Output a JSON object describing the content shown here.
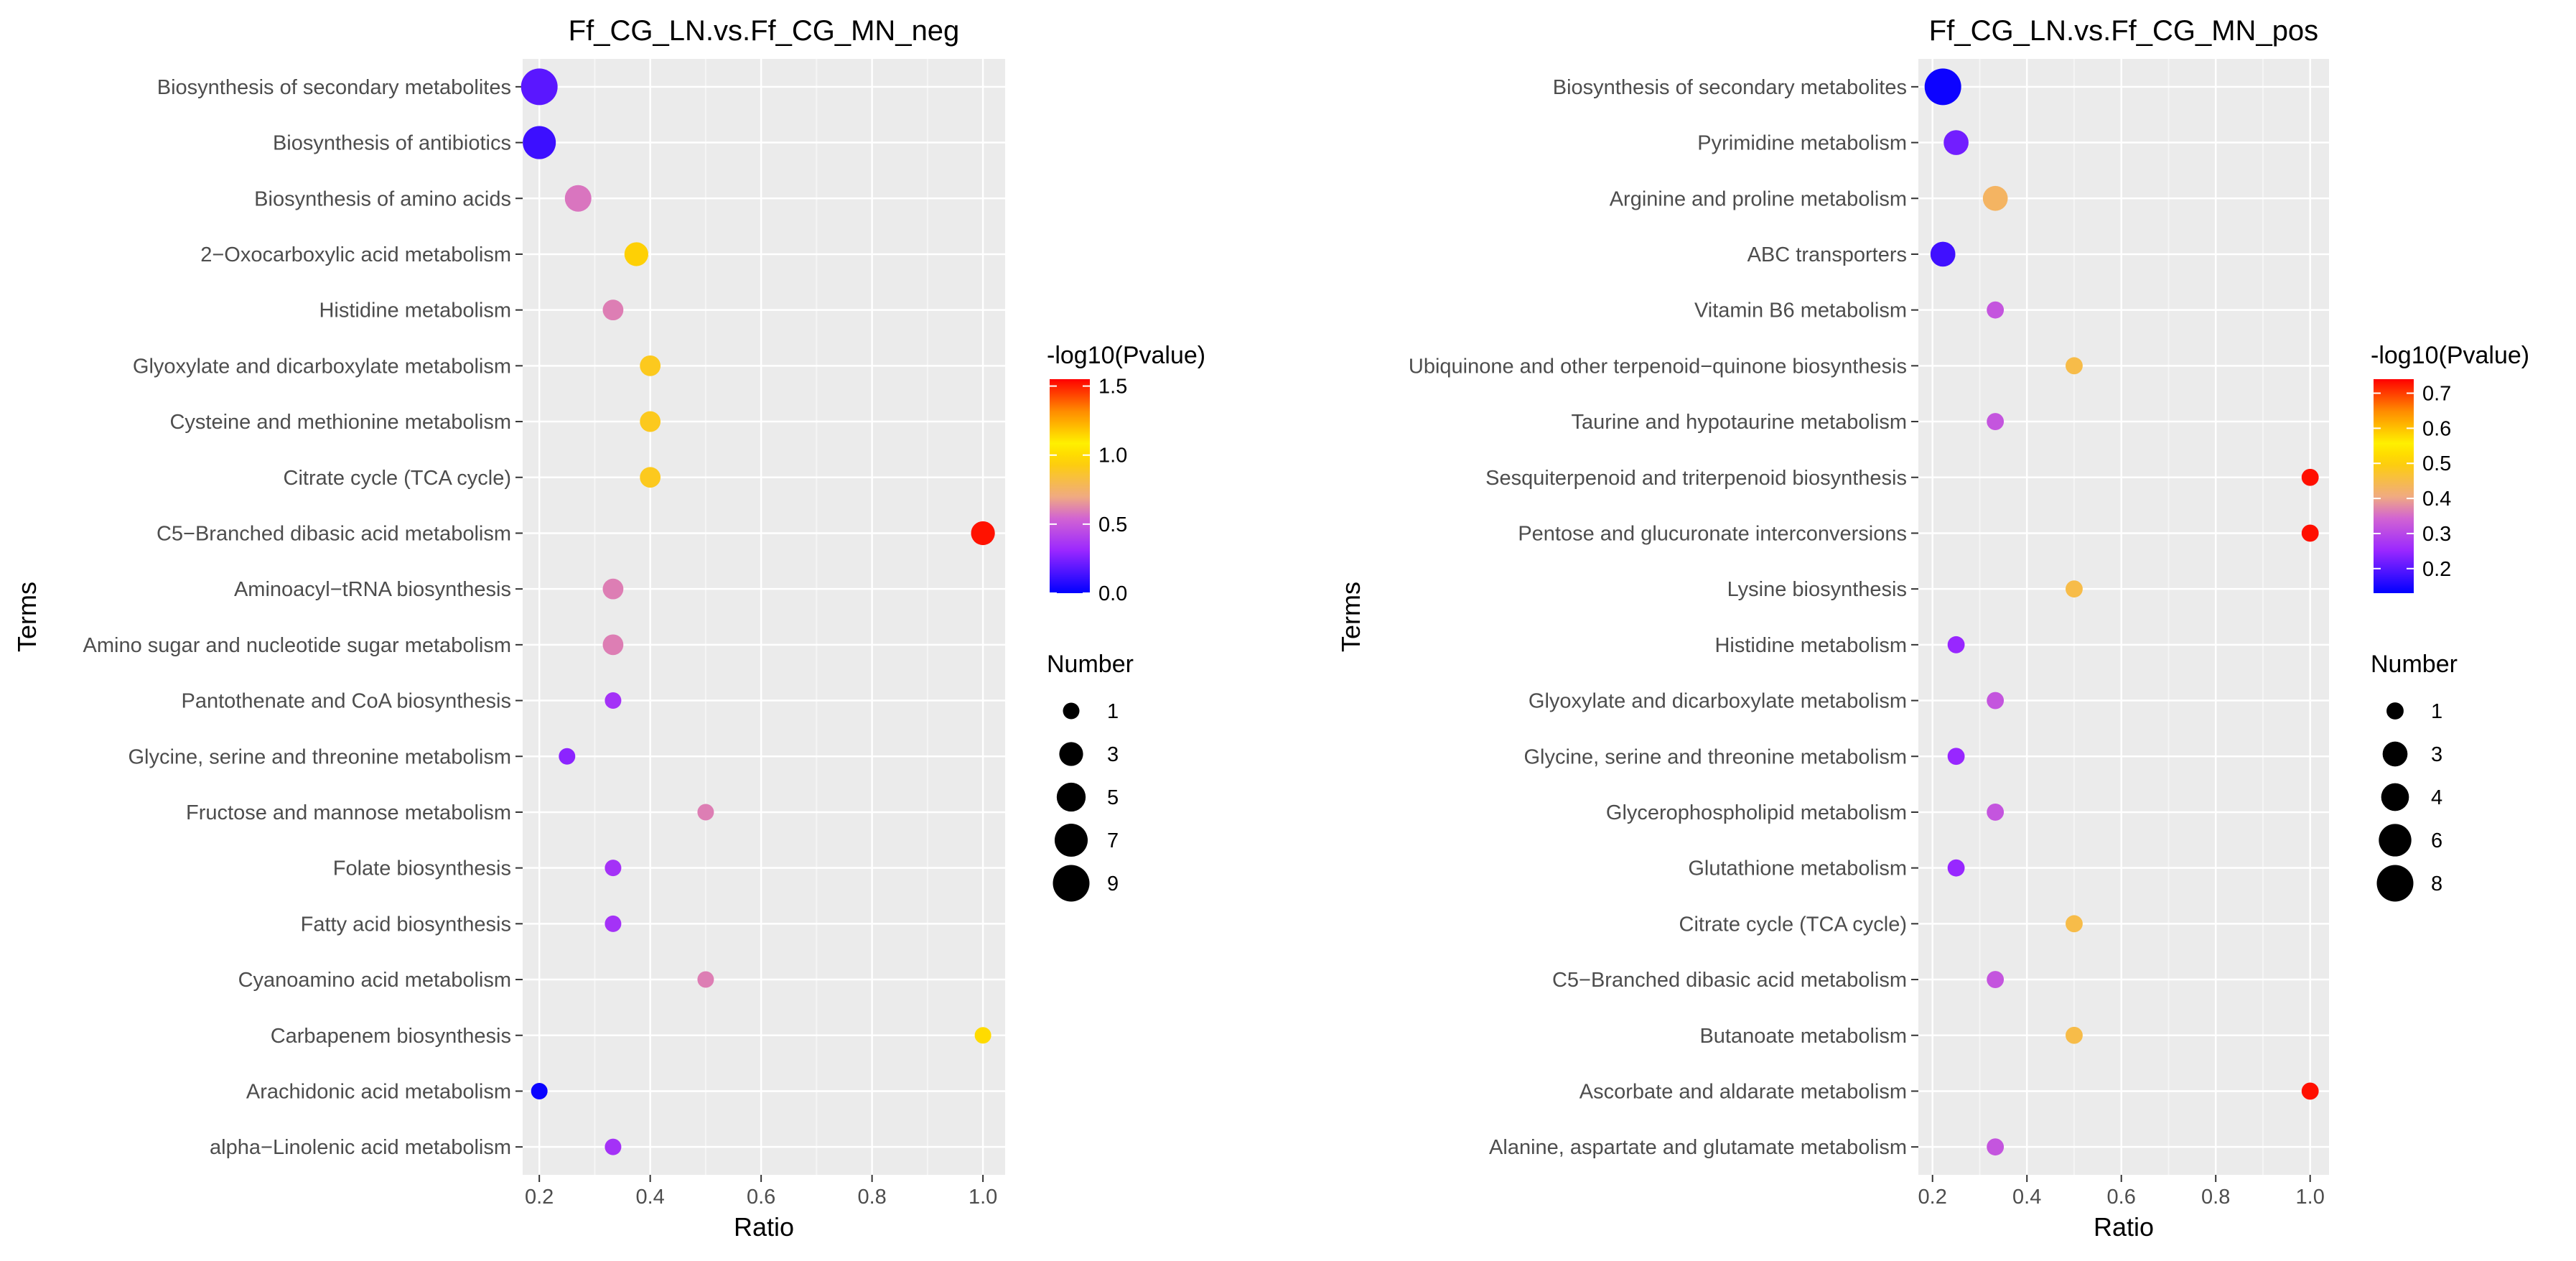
{
  "chart_data": [
    {
      "type": "scatter",
      "title": "Ff_CG_LN.vs.Ff_CG_MN_neg",
      "xlabel": "Ratio",
      "ylabel": "Terms",
      "xlim": [
        0.17,
        1.04
      ],
      "xticks": [
        0.2,
        0.4,
        0.6,
        0.8,
        1.0
      ],
      "xtick_labels": [
        "0.2",
        "0.4",
        "0.6",
        "0.8",
        "1.0"
      ],
      "color_legend": {
        "title": "-log10(Pvalue)",
        "min": 0.0,
        "max": 1.55,
        "ticks": [
          0.0,
          0.5,
          1.0,
          1.5
        ],
        "tick_labels": [
          "0.0",
          "0.5",
          "1.0",
          "1.5"
        ]
      },
      "size_legend": {
        "title": "Number",
        "values": [
          1,
          3,
          5,
          7,
          9
        ],
        "labels": [
          "1",
          "3",
          "5",
          "7",
          "9"
        ]
      },
      "points": [
        {
          "term": "Biosynthesis of secondary metabolites",
          "ratio": 0.2,
          "number": 9,
          "neglog10p": 0.18
        },
        {
          "term": "Biosynthesis of antibiotics",
          "ratio": 0.2,
          "number": 7,
          "neglog10p": 0.12
        },
        {
          "term": "Biosynthesis of amino acids",
          "ratio": 0.27,
          "number": 4,
          "neglog10p": 0.58
        },
        {
          "term": "2−Oxocarboxylic acid metabolism",
          "ratio": 0.375,
          "number": 3,
          "neglog10p": 0.95
        },
        {
          "term": "Histidine metabolism",
          "ratio": 0.333,
          "number": 2,
          "neglog10p": 0.6
        },
        {
          "term": "Glyoxylate and dicarboxylate metabolism",
          "ratio": 0.4,
          "number": 2,
          "neglog10p": 0.9
        },
        {
          "term": "Cysteine and methionine metabolism",
          "ratio": 0.4,
          "number": 2,
          "neglog10p": 0.9
        },
        {
          "term": "Citrate cycle (TCA cycle)",
          "ratio": 0.4,
          "number": 2,
          "neglog10p": 0.9
        },
        {
          "term": "C5−Branched dibasic acid metabolism",
          "ratio": 1.0,
          "number": 3,
          "neglog10p": 1.52
        },
        {
          "term": "Aminoacyl−tRNA biosynthesis",
          "ratio": 0.333,
          "number": 2,
          "neglog10p": 0.6
        },
        {
          "term": "Amino sugar and nucleotide sugar metabolism",
          "ratio": 0.333,
          "number": 2,
          "neglog10p": 0.6
        },
        {
          "term": "Pantothenate and CoA biosynthesis",
          "ratio": 0.333,
          "number": 1,
          "neglog10p": 0.35
        },
        {
          "term": "Glycine, serine and threonine metabolism",
          "ratio": 0.25,
          "number": 1,
          "neglog10p": 0.28
        },
        {
          "term": "Fructose and mannose metabolism",
          "ratio": 0.5,
          "number": 1,
          "neglog10p": 0.6
        },
        {
          "term": "Folate biosynthesis",
          "ratio": 0.333,
          "number": 1,
          "neglog10p": 0.35
        },
        {
          "term": "Fatty acid biosynthesis",
          "ratio": 0.333,
          "number": 1,
          "neglog10p": 0.35
        },
        {
          "term": "Cyanoamino acid metabolism",
          "ratio": 0.5,
          "number": 1,
          "neglog10p": 0.6
        },
        {
          "term": "Carbapenem biosynthesis",
          "ratio": 1.0,
          "number": 1,
          "neglog10p": 1.0
        },
        {
          "term": "Arachidonic acid metabolism",
          "ratio": 0.2,
          "number": 1,
          "neglog10p": 0.02
        },
        {
          "term": "alpha−Linolenic acid metabolism",
          "ratio": 0.333,
          "number": 1,
          "neglog10p": 0.35
        }
      ]
    },
    {
      "type": "scatter",
      "title": "Ff_CG_LN.vs.Ff_CG_MN_pos",
      "xlabel": "Ratio",
      "ylabel": "Terms",
      "xlim": [
        0.17,
        1.04
      ],
      "xticks": [
        0.2,
        0.4,
        0.6,
        0.8,
        1.0
      ],
      "xtick_labels": [
        "0.2",
        "0.4",
        "0.6",
        "0.8",
        "1.0"
      ],
      "color_legend": {
        "title": "-log10(Pvalue)",
        "min": 0.13,
        "max": 0.74,
        "ticks": [
          0.2,
          0.3,
          0.4,
          0.5,
          0.6,
          0.7
        ],
        "tick_labels": [
          "0.2",
          "0.3",
          "0.4",
          "0.5",
          "0.6",
          "0.7"
        ]
      },
      "size_legend": {
        "title": "Number",
        "values": [
          1,
          3,
          4,
          6,
          8
        ],
        "labels": [
          "1",
          "3",
          "4",
          "6",
          "8"
        ]
      },
      "points": [
        {
          "term": "Biosynthesis of secondary metabolites",
          "ratio": 0.222,
          "number": 8,
          "neglog10p": 0.14
        },
        {
          "term": "Pyrimidine metabolism",
          "ratio": 0.25,
          "number": 3,
          "neglog10p": 0.22
        },
        {
          "term": "Arginine and proline metabolism",
          "ratio": 0.333,
          "number": 3,
          "neglog10p": 0.43
        },
        {
          "term": "ABC transporters",
          "ratio": 0.222,
          "number": 3,
          "neglog10p": 0.18
        },
        {
          "term": "Vitamin B6 metabolism",
          "ratio": 0.333,
          "number": 1,
          "neglog10p": 0.32
        },
        {
          "term": "Ubiquinone and other terpenoid−quinone biosynthesis",
          "ratio": 0.5,
          "number": 1,
          "neglog10p": 0.45
        },
        {
          "term": "Taurine and hypotaurine metabolism",
          "ratio": 0.333,
          "number": 1,
          "neglog10p": 0.32
        },
        {
          "term": "Sesquiterpenoid and triterpenoid biosynthesis",
          "ratio": 1.0,
          "number": 1,
          "neglog10p": 0.73
        },
        {
          "term": "Pentose and glucuronate interconversions",
          "ratio": 1.0,
          "number": 1,
          "neglog10p": 0.73
        },
        {
          "term": "Lysine biosynthesis",
          "ratio": 0.5,
          "number": 1,
          "neglog10p": 0.45
        },
        {
          "term": "Histidine metabolism",
          "ratio": 0.25,
          "number": 1,
          "neglog10p": 0.25
        },
        {
          "term": "Glyoxylate and dicarboxylate metabolism",
          "ratio": 0.333,
          "number": 1,
          "neglog10p": 0.32
        },
        {
          "term": "Glycine, serine and threonine metabolism",
          "ratio": 0.25,
          "number": 1,
          "neglog10p": 0.25
        },
        {
          "term": "Glycerophospholipid metabolism",
          "ratio": 0.333,
          "number": 1,
          "neglog10p": 0.32
        },
        {
          "term": "Glutathione metabolism",
          "ratio": 0.25,
          "number": 1,
          "neglog10p": 0.25
        },
        {
          "term": "Citrate cycle (TCA cycle)",
          "ratio": 0.5,
          "number": 1,
          "neglog10p": 0.45
        },
        {
          "term": "C5−Branched dibasic acid metabolism",
          "ratio": 0.333,
          "number": 1,
          "neglog10p": 0.32
        },
        {
          "term": "Butanoate metabolism",
          "ratio": 0.5,
          "number": 1,
          "neglog10p": 0.45
        },
        {
          "term": "Ascorbate and aldarate metabolism",
          "ratio": 1.0,
          "number": 1,
          "neglog10p": 0.73
        },
        {
          "term": "Alanine, aspartate and glutamate metabolism",
          "ratio": 0.333,
          "number": 1,
          "neglog10p": 0.32
        }
      ]
    }
  ]
}
